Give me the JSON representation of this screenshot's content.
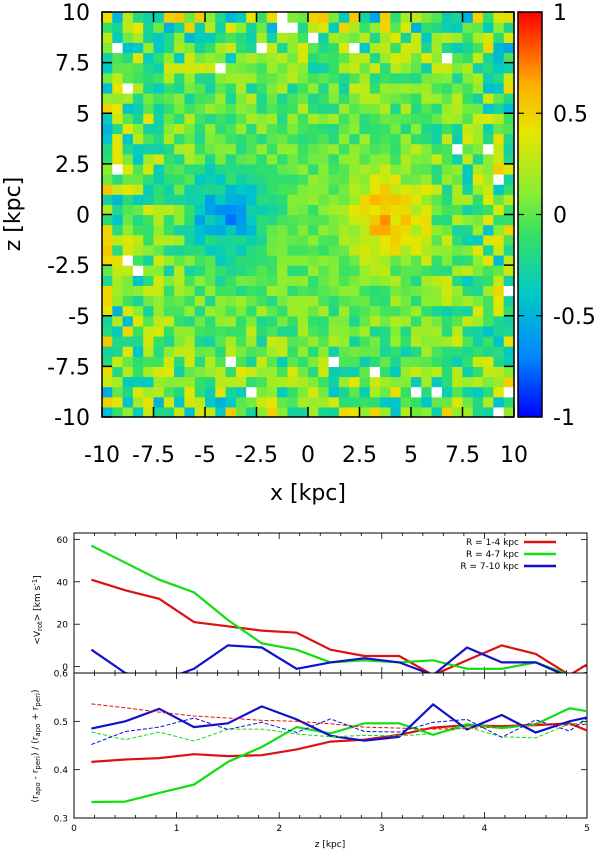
{
  "chart_data": [
    {
      "type": "heatmap",
      "xlabel": "x [kpc]",
      "ylabel": "z [kpc]",
      "xlim": [
        -10,
        10
      ],
      "ylim": [
        -10,
        10
      ],
      "x_ticks": [
        "-10",
        "-7.5",
        "-5",
        "-2.5",
        "0",
        "2.5",
        "5",
        "7.5",
        "10"
      ],
      "y_ticks": [
        "10",
        "7.5",
        "5",
        "2.5",
        "0",
        "-2.5",
        "-5",
        "-7.5",
        "-10"
      ],
      "colorbar": {
        "range": [
          -1,
          1
        ],
        "ticks": [
          "1",
          "0.5",
          "0",
          "-0.5",
          "-1"
        ],
        "palette": "rainbow (blue-cyan-green-yellow-red)"
      },
      "features": [
        {
          "x": -3.9,
          "z": 0.0,
          "value": -0.6
        },
        {
          "x": 3.8,
          "z": 0.0,
          "value": 0.6
        }
      ]
    },
    {
      "type": "line",
      "xlabel": "",
      "ylabel": "<v_rot> [km s^-1]",
      "ylabel_parts": {
        "pre": "<V",
        "sub": "rot",
        "post": "> [km s",
        "sup": "-1",
        "end": "]"
      },
      "xlim": [
        0,
        5
      ],
      "ylim": [
        -3,
        63
      ],
      "y_ticks": [
        "60",
        "40",
        "20",
        "0"
      ],
      "x": [
        0.17,
        0.5,
        0.83,
        1.17,
        1.5,
        1.83,
        2.17,
        2.5,
        2.83,
        3.17,
        3.5,
        3.83,
        4.17,
        4.5,
        4.83,
        5.0
      ],
      "series": [
        {
          "name": "R = 1-4 kpc",
          "color": "#dd1111",
          "values": [
            41,
            36,
            32,
            21,
            19,
            17,
            16,
            8,
            5,
            5,
            -4,
            3,
            10,
            6,
            -4,
            1
          ]
        },
        {
          "name": "R = 4-7 kpc",
          "color": "#11dd11",
          "values": [
            57,
            49,
            41,
            35,
            22,
            11,
            8,
            2,
            3,
            2,
            3,
            -1,
            -1,
            2,
            -4,
            -3
          ]
        },
        {
          "name": "R = 7-10 kpc",
          "color": "#1111cc",
          "values": [
            8,
            -3,
            -7,
            -1,
            10,
            9,
            -1,
            2,
            4,
            2,
            -4,
            9,
            2,
            2,
            -5,
            -3
          ]
        }
      ]
    },
    {
      "type": "line",
      "xlabel": "z [kpc]",
      "ylabel": "(r_apo - r_peri) / (r_apo + r_peri)",
      "ylabel_parts": {
        "a": "(r",
        "b": "apo",
        "c": " - r",
        "d": "peri",
        "e": ") / (r",
        "f": "apo",
        "g": " + r",
        "h": "peri",
        "i": ")"
      },
      "xlim": [
        0,
        5
      ],
      "ylim": [
        0.3,
        0.6
      ],
      "x_ticks": [
        "0",
        "1",
        "2",
        "3",
        "4",
        "5"
      ],
      "y_ticks": [
        "0.6",
        "0.5",
        "0.4",
        "0.3"
      ],
      "x": [
        0.17,
        0.5,
        0.83,
        1.17,
        1.5,
        1.83,
        2.17,
        2.5,
        2.83,
        3.17,
        3.5,
        3.83,
        4.17,
        4.5,
        4.83,
        5.0
      ],
      "series": [
        {
          "color": "#dd1111",
          "style": "solid",
          "values": [
            0.416,
            0.421,
            0.424,
            0.432,
            0.428,
            0.43,
            0.442,
            0.458,
            0.462,
            0.472,
            0.487,
            0.492,
            0.49,
            0.492,
            0.496,
            0.481
          ]
        },
        {
          "color": "#11dd11",
          "style": "solid",
          "values": [
            0.333,
            0.334,
            0.352,
            0.369,
            0.416,
            0.447,
            0.488,
            0.475,
            0.496,
            0.496,
            0.472,
            0.494,
            0.486,
            0.494,
            0.527,
            0.521
          ]
        },
        {
          "color": "#1111cc",
          "style": "solid",
          "values": [
            0.485,
            0.5,
            0.526,
            0.488,
            0.496,
            0.531,
            0.504,
            0.47,
            0.46,
            0.468,
            0.535,
            0.483,
            0.513,
            0.477,
            0.5,
            0.508
          ]
        },
        {
          "color": "#dd1111",
          "style": "dashed",
          "values": [
            0.536,
            0.528,
            0.519,
            0.511,
            0.507,
            0.502,
            0.5,
            0.495,
            0.488,
            0.486,
            0.484,
            0.485,
            0.49,
            0.495,
            0.492,
            0.494
          ]
        },
        {
          "color": "#11dd11",
          "style": "dashed",
          "values": [
            0.478,
            0.462,
            0.478,
            0.459,
            0.484,
            0.484,
            0.474,
            0.468,
            0.471,
            0.47,
            0.474,
            0.488,
            0.468,
            0.466,
            0.495,
            0.497
          ]
        },
        {
          "color": "#1111cc",
          "style": "dashed",
          "values": [
            0.452,
            0.479,
            0.488,
            0.507,
            0.483,
            0.498,
            0.477,
            0.505,
            0.479,
            0.478,
            0.498,
            0.504,
            0.467,
            0.503,
            0.48,
            0.507
          ]
        }
      ]
    }
  ]
}
